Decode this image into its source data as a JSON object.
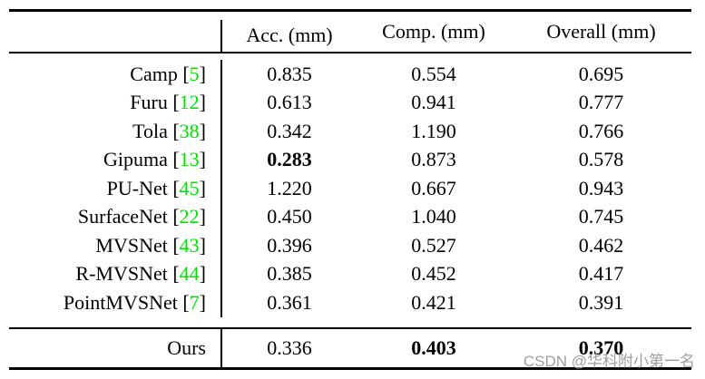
{
  "punct": {
    "cite_open": " [",
    "cite_close": "]"
  },
  "colors": {
    "citation_green": "#00dd00",
    "text": "#000000",
    "watermark_gray": "#9e9e9e"
  },
  "watermark": {
    "text": "CSDN @华科附小第一名"
  },
  "table": {
    "header": {
      "method": "",
      "acc": "Acc. (mm)",
      "comp": "Comp. (mm)",
      "overall": "Overall (mm)"
    },
    "rows": [
      {
        "name": "Camp",
        "cite": "5",
        "acc": "0.835",
        "comp": "0.554",
        "overall": "0.695"
      },
      {
        "name": "Furu",
        "cite": "12",
        "acc": "0.613",
        "comp": "0.941",
        "overall": "0.777"
      },
      {
        "name": "Tola",
        "cite": "38",
        "acc": "0.342",
        "comp": "1.190",
        "overall": "0.766"
      },
      {
        "name": "Gipuma",
        "cite": "13",
        "acc": "0.283",
        "comp": "0.873",
        "overall": "0.578"
      },
      {
        "name": "PU-Net",
        "cite": "45",
        "acc": "1.220",
        "comp": "0.667",
        "overall": "0.943"
      },
      {
        "name": "SurfaceNet",
        "cite": "22",
        "acc": "0.450",
        "comp": "1.040",
        "overall": "0.745"
      },
      {
        "name": "MVSNet",
        "cite": "43",
        "acc": "0.396",
        "comp": "0.527",
        "overall": "0.462"
      },
      {
        "name": "R-MVSNet",
        "cite": "44",
        "acc": "0.385",
        "comp": "0.452",
        "overall": "0.417"
      },
      {
        "name": "PointMVSNet",
        "cite": "7",
        "acc": "0.361",
        "comp": "0.421",
        "overall": "0.391"
      }
    ],
    "footer": {
      "name": "Ours",
      "acc": "0.336",
      "comp": "0.403",
      "overall": "0.370"
    }
  }
}
